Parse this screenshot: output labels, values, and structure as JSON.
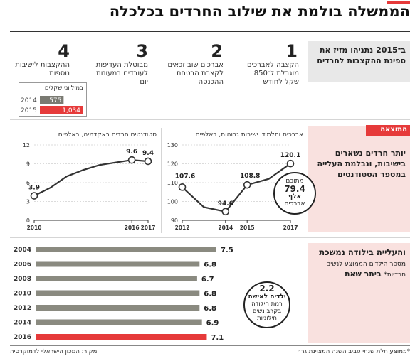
{
  "title": "הממשלה בולמת את שילוב החרדים בכלכלה",
  "top_panel": {
    "side_text": "ב־2015 נתניהו מזיז את ספינת ההקצבות לחרדים",
    "items": [
      {
        "num": "1",
        "text": "הקצבה לאברכים מוגבלת ל־850 שקל לחודש"
      },
      {
        "num": "2",
        "text": "אברכים שוב זכאים לקצבת הבטחת ההכנסה"
      },
      {
        "num": "3",
        "text": "מבוטלת העדיפות לעובדים במעונות יום"
      },
      {
        "num": "4",
        "text": "ההקצבות לישיבות נוספות"
      }
    ],
    "mini_chart": {
      "unit": "במיליוני שקלים",
      "rows": [
        {
          "year": "2014",
          "value": 575,
          "label": "575"
        },
        {
          "year": "2015",
          "value": 1034,
          "label": "1,034"
        }
      ]
    }
  },
  "result_panel": {
    "tag": "התוצאה",
    "side_text": "יותר חרדים נשארים בישיבות, ונבלמת העלייה במספר הסטודנטים",
    "note": {
      "l1": "מתוכם",
      "l2": "79.4",
      "l3": "אלף",
      "l4": "אברכים"
    }
  },
  "birth_panel": {
    "side_bold": "והעלייה בילודה נמשכת",
    "side_bold2": "ביתר שאת",
    "side_small": "מספר הילדים הממוצע לנשים חרדיות*",
    "note": {
      "l1": "2.2",
      "l2": "ילדים לאישה",
      "l3": "רמת הילודה",
      "l4": "בקרב נשים",
      "l5": "חילוניות"
    }
  },
  "footer": {
    "left": "מקור: המכון הישראלי לדמוקרטיה",
    "right": "*ממוצע תלת שנתי סביב השנה המצוינת גרף"
  },
  "chart_data": [
    {
      "type": "line",
      "title": "סטודנטים חרדים באקדמיה, באלפים",
      "x": [
        2010,
        2011,
        2012,
        2013,
        2014,
        2015,
        2016,
        2017
      ],
      "x_ticks": [
        "2010",
        "2016",
        "2017"
      ],
      "series": [
        {
          "values": [
            3.9,
            5.2,
            7.0,
            8.0,
            8.8,
            9.2,
            9.6,
            9.4
          ]
        }
      ],
      "point_labels": [
        {
          "x": 2010,
          "label": "3.9"
        },
        {
          "x": 2016,
          "label": "9.6"
        },
        {
          "x": 2017,
          "label": "9.4"
        }
      ],
      "ylim": [
        0,
        12
      ],
      "y_ticks": [
        0,
        3,
        6,
        9,
        12
      ],
      "grid": true
    },
    {
      "type": "line",
      "title": "אברכים ותלמידי ישיבות גבוהות, באלפים",
      "x": [
        2012,
        2013,
        2014,
        2015,
        2016,
        2017
      ],
      "x_ticks": [
        "2012",
        "2014",
        "2015",
        "2017"
      ],
      "series": [
        {
          "values": [
            107.6,
            97.0,
            94.6,
            108.8,
            112.0,
            120.1
          ]
        }
      ],
      "point_labels": [
        {
          "x": 2012,
          "label": "107.6"
        },
        {
          "x": 2014,
          "label": "94.6"
        },
        {
          "x": 2015,
          "label": "108.8"
        },
        {
          "x": 2017,
          "label": "120.1"
        }
      ],
      "ylim": [
        90,
        130
      ],
      "y_ticks": [
        90,
        100,
        110,
        120,
        130
      ],
      "grid": true
    },
    {
      "type": "bar",
      "categories": [
        "2004",
        "2006",
        "2008",
        "2010",
        "2012",
        "2014",
        "2016"
      ],
      "values": [
        7.5,
        6.8,
        6.7,
        6.8,
        6.8,
        6.9,
        7.1
      ],
      "value_labels": [
        "7.5",
        "6.8",
        "6.7",
        "6.8",
        "6.8",
        "6.9",
        "7.1"
      ],
      "highlight": "2016",
      "colors": {
        "normal": "#8a8a80",
        "highlight": "#e63a3a"
      }
    }
  ],
  "colors": {
    "accent": "#e63a3a",
    "bar_grey": "#8a8a80",
    "side_grey": "#e8e8e8",
    "side_pink": "#f9e1df"
  }
}
